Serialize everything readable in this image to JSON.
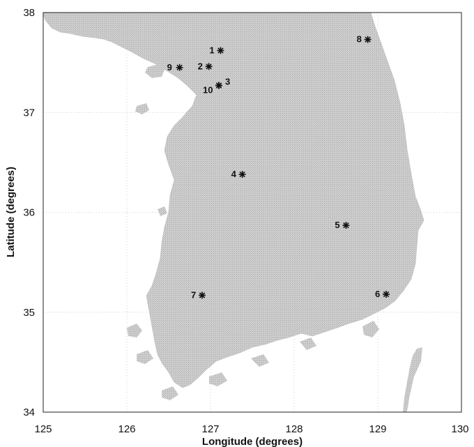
{
  "map": {
    "xlabel": "Longitude (degrees)",
    "ylabel": "Latitude (degrees)",
    "xlim": [
      125,
      130
    ],
    "ylim": [
      34,
      38
    ],
    "x_ticks": [
      "125",
      "126",
      "127",
      "128",
      "129",
      "130"
    ],
    "y_ticks": [
      "34",
      "35",
      "36",
      "37",
      "38"
    ],
    "grid": true,
    "land_color": "#c9c9c9",
    "sea_color": "#ffffff"
  },
  "stations": [
    {
      "id": "1",
      "lon": 127.12,
      "lat": 37.62
    },
    {
      "id": "2",
      "lon": 126.98,
      "lat": 37.46
    },
    {
      "id": "3",
      "lon": 127.1,
      "lat": 37.27
    },
    {
      "id": "10",
      "lon": 127.1,
      "lat": 37.27
    },
    {
      "id": "4",
      "lon": 127.38,
      "lat": 36.38
    },
    {
      "id": "5",
      "lon": 128.62,
      "lat": 35.87
    },
    {
      "id": "6",
      "lon": 129.1,
      "lat": 35.18
    },
    {
      "id": "7",
      "lon": 126.9,
      "lat": 35.17
    },
    {
      "id": "8",
      "lon": 128.88,
      "lat": 37.73
    },
    {
      "id": "9",
      "lon": 126.63,
      "lat": 37.45
    }
  ]
}
